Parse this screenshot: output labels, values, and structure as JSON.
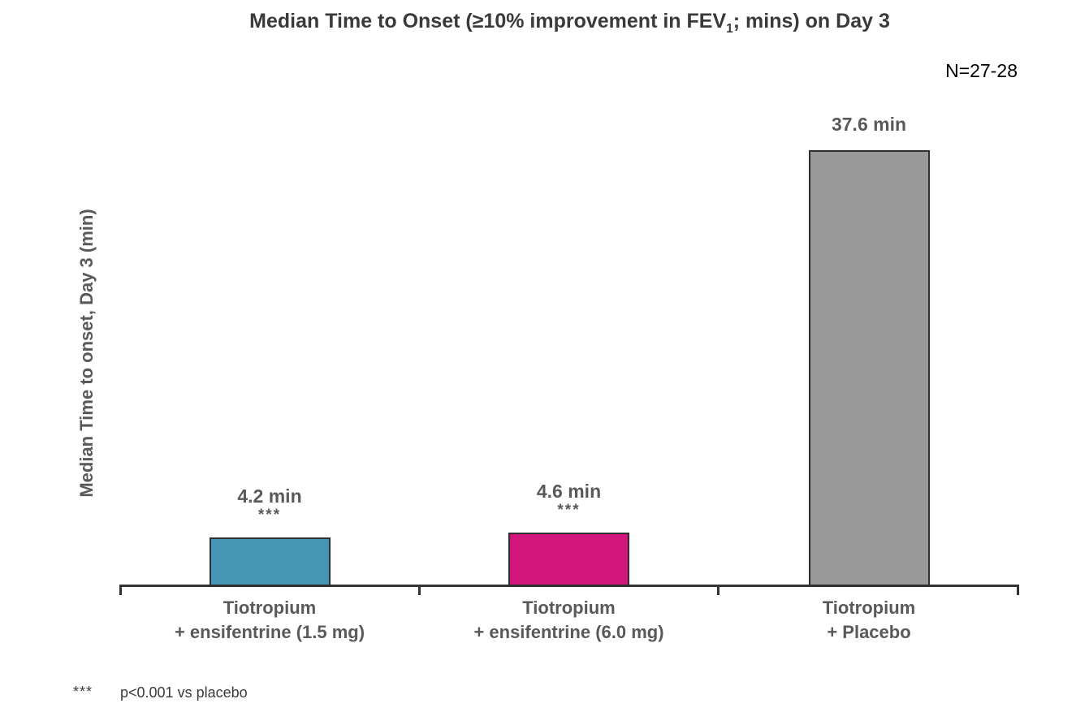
{
  "title": {
    "prefix": "Median Time to Onset (≥10% improvement in FEV",
    "subscript": "1",
    "suffix": "; mins) on Day 3"
  },
  "sample_size": "N=27-28",
  "y_axis_label": "Median Time to onset, Day 3 (min)",
  "footnote": {
    "symbol": "***",
    "text": "p<0.001 vs placebo"
  },
  "bars": [
    {
      "label_line1": "Tiotropium",
      "label_line2": "+ ensifentrine (1.5 mg)",
      "value_label": "4.2 min",
      "stars": "***"
    },
    {
      "label_line1": "Tiotropium",
      "label_line2": "+ ensifentrine (6.0 mg)",
      "value_label": "4.6 min",
      "stars": "***"
    },
    {
      "label_line1": "Tiotropium",
      "label_line2": "+ Placebo",
      "value_label": "37.6 min",
      "stars": ""
    }
  ],
  "chart_data": {
    "type": "bar",
    "title": "Median Time to Onset (≥10% improvement in FEV1; mins) on Day 3",
    "xlabel": "",
    "ylabel": "Median Time to onset, Day 3 (min)",
    "categories": [
      "Tiotropium + ensifentrine (1.5 mg)",
      "Tiotropium + ensifentrine (6.0 mg)",
      "Tiotropium + Placebo"
    ],
    "values": [
      4.2,
      4.6,
      37.6
    ],
    "value_labels": [
      "4.2 min",
      "4.6 min",
      "37.6 min"
    ],
    "significance": [
      "***",
      "***",
      ""
    ],
    "bar_colors": [
      "#4595B4",
      "#D2157B",
      "#999999"
    ],
    "bar_border_color": "#2f2f2f",
    "ylim": [
      0,
      40
    ],
    "grid": false,
    "legend": "none",
    "y_axis_ticks_visible": false,
    "annotations": [
      "N=27-28",
      "*** p<0.001 vs placebo"
    ]
  }
}
